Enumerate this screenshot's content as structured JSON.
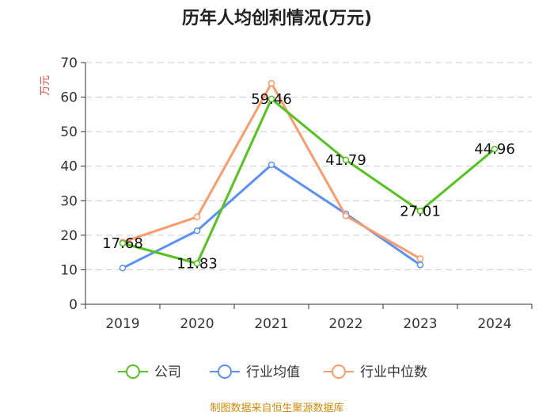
{
  "chart_data": {
    "type": "line",
    "title": "历年人均创利情况(万元)",
    "ylabel": "万元",
    "xlabel": "",
    "categories": [
      "2019",
      "2020",
      "2021",
      "2022",
      "2023",
      "2024"
    ],
    "ylim": [
      0,
      70
    ],
    "yticks": [
      0,
      10,
      20,
      30,
      40,
      50,
      60,
      70
    ],
    "grid": true,
    "legend_position": "bottom",
    "series": [
      {
        "name": "公司",
        "color": "#52c41a",
        "values": [
          17.68,
          11.83,
          59.46,
          41.79,
          27.01,
          44.96
        ],
        "labels": [
          "17.68",
          "11.83",
          "59.46",
          "41.79",
          "27.01",
          "44.96"
        ]
      },
      {
        "name": "行业均值",
        "color": "#5b8ff9",
        "values": [
          10.5,
          21.3,
          40.4,
          26.2,
          11.4,
          null
        ]
      },
      {
        "name": "行业中位数",
        "color": "#ff9a6a",
        "values": [
          18.0,
          25.3,
          64.0,
          25.6,
          13.2,
          null
        ]
      }
    ]
  },
  "source": "制图数据来自恒生聚源数据库",
  "colors": {
    "ylabel": "#e8473c",
    "source": "#d48806",
    "axis": "#333333",
    "grid": "#cccccc"
  }
}
